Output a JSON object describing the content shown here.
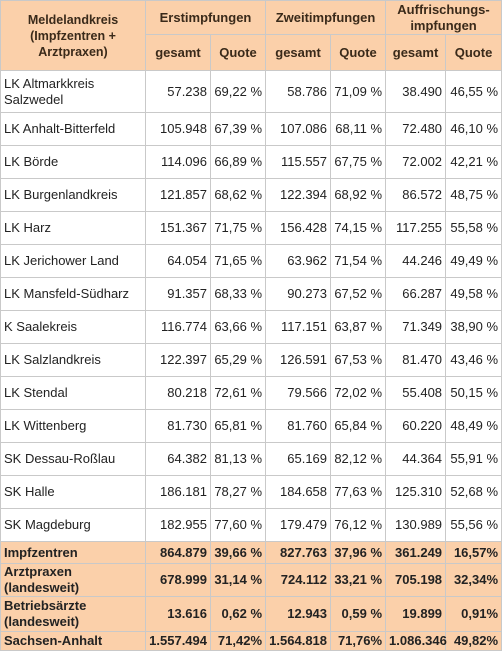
{
  "table": {
    "header": {
      "region": "Meldelandkreis (Impfzentren + Arztpraxen)",
      "groups": [
        "Erstimpfungen",
        "Zweitimpfungen",
        "Auffrischungs­impfungen"
      ],
      "sub": [
        "gesamt",
        "Quote",
        "gesamt",
        "Quote",
        "gesamt",
        "Quote"
      ]
    },
    "rows": [
      [
        "LK Altmarkkreis Salzwedel",
        "57.238",
        "69,22 %",
        "58.786",
        "71,09 %",
        "38.490",
        "46,55 %"
      ],
      [
        "LK Anhalt-Bitterfeld",
        "105.948",
        "67,39 %",
        "107.086",
        "68,11 %",
        "72.480",
        "46,10 %"
      ],
      [
        "LK Börde",
        "114.096",
        "66,89 %",
        "115.557",
        "67,75 %",
        "72.002",
        "42,21 %"
      ],
      [
        "LK Burgenlandkreis",
        "121.857",
        "68,62 %",
        "122.394",
        "68,92 %",
        "86.572",
        "48,75 %"
      ],
      [
        "LK Harz",
        "151.367",
        "71,75 %",
        "156.428",
        "74,15 %",
        "117.255",
        "55,58 %"
      ],
      [
        "LK Jerichower Land",
        "64.054",
        "71,65 %",
        "63.962",
        "71,54 %",
        "44.246",
        "49,49 %"
      ],
      [
        "LK Mansfeld-Südharz",
        "91.357",
        "68,33 %",
        "90.273",
        "67,52 %",
        "66.287",
        "49,58 %"
      ],
      [
        "K Saalekreis",
        "116.774",
        "63,66 %",
        "117.151",
        "63,87 %",
        "71.349",
        "38,90 %"
      ],
      [
        "LK Salzlandkreis",
        "122.397",
        "65,29 %",
        "126.591",
        "67,53 %",
        "81.470",
        "43,46 %"
      ],
      [
        "LK Stendal",
        "80.218",
        "72,61 %",
        "79.566",
        "72,02 %",
        "55.408",
        "50,15 %"
      ],
      [
        "LK Wittenberg",
        "81.730",
        "65,81 %",
        "81.760",
        "65,84 %",
        "60.220",
        "48,49 %"
      ],
      [
        "SK Dessau-Roßlau",
        "64.382",
        "81,13 %",
        "65.169",
        "82,12 %",
        "44.364",
        "55,91 %"
      ],
      [
        "SK Halle",
        "186.181",
        "78,27 %",
        "184.658",
        "77,63 %",
        "125.310",
        "52,68 %"
      ],
      [
        "SK Magdeburg",
        "182.955",
        "77,60 %",
        "179.479",
        "76,12 %",
        "130.989",
        "55,56 %"
      ]
    ],
    "totals": [
      [
        "Impfzentren",
        "864.879",
        "39,66 %",
        "827.763",
        "37,96 %",
        "361.249",
        "16,57%"
      ],
      [
        "Arztpraxen (landesweit)",
        "678.999",
        "31,14 %",
        "724.112",
        "33,21 %",
        "705.198",
        "32,34%"
      ],
      [
        "Betriebsärzte (landesweit)",
        "13.616",
        "0,62 %",
        "12.943",
        "0,59 %",
        "19.899",
        "0,91%"
      ],
      [
        "Sachsen-Anhalt",
        "1.557.494",
        "71,42%",
        "1.564.818",
        "71,76%",
        "1.086.346",
        "49,82%"
      ]
    ]
  }
}
